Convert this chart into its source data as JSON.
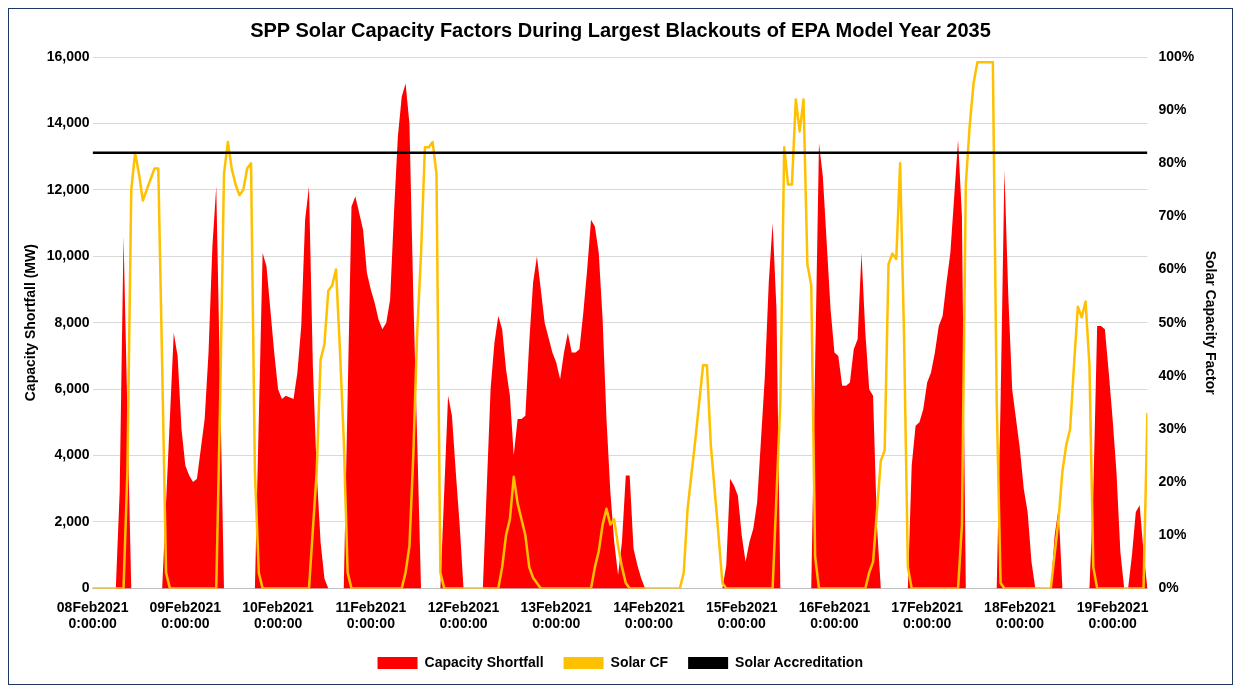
{
  "chart_data": {
    "type": "area",
    "title": "SPP Solar Capacity Factors During Largest Blackouts of EPA Model Year 2035",
    "ylabel": "Capacity Shortfall (MW)",
    "y2label": "Solar Capacity Factor",
    "xlim": [
      "2021-02-08T00:00",
      "2021-02-19T09:00"
    ],
    "xticks": [
      {
        "value": "2021-02-08",
        "label": "08Feb2021 0:00:00"
      },
      {
        "value": "2021-02-09",
        "label": "09Feb2021 0:00:00"
      },
      {
        "value": "2021-02-10",
        "label": "10Feb2021 0:00:00"
      },
      {
        "value": "2021-02-11",
        "label": "11Feb2021 0:00:00"
      },
      {
        "value": "2021-02-12",
        "label": "12Feb2021 0:00:00"
      },
      {
        "value": "2021-02-13",
        "label": "13Feb2021 0:00:00"
      },
      {
        "value": "2021-02-14",
        "label": "14Feb2021 0:00:00"
      },
      {
        "value": "2021-02-15",
        "label": "15Feb2021 0:00:00"
      },
      {
        "value": "2021-02-16",
        "label": "16Feb2021 0:00:00"
      },
      {
        "value": "2021-02-17",
        "label": "17Feb2021 0:00:00"
      },
      {
        "value": "2021-02-18",
        "label": "18Feb2021 0:00:00"
      },
      {
        "value": "2021-02-19",
        "label": "19Feb2021 0:00:00"
      }
    ],
    "ylim": [
      0,
      16000
    ],
    "yticks": [
      {
        "value": 0,
        "label": "0"
      },
      {
        "value": 2000,
        "label": "2,000"
      },
      {
        "value": 4000,
        "label": "4,000"
      },
      {
        "value": 6000,
        "label": "6,000"
      },
      {
        "value": 8000,
        "label": "8,000"
      },
      {
        "value": 10000,
        "label": "10,000"
      },
      {
        "value": 12000,
        "label": "12,000"
      },
      {
        "value": 14000,
        "label": "14,000"
      },
      {
        "value": 16000,
        "label": "16,000"
      }
    ],
    "y2lim": [
      0,
      100
    ],
    "y2ticks": [
      {
        "value": 0,
        "label": "0%"
      },
      {
        "value": 10,
        "label": "10%"
      },
      {
        "value": 20,
        "label": "20%"
      },
      {
        "value": 30,
        "label": "30%"
      },
      {
        "value": 40,
        "label": "40%"
      },
      {
        "value": 50,
        "label": "50%"
      },
      {
        "value": 60,
        "label": "60%"
      },
      {
        "value": 70,
        "label": "70%"
      },
      {
        "value": 80,
        "label": "80%"
      },
      {
        "value": 90,
        "label": "90%"
      },
      {
        "value": 100,
        "label": "100%"
      }
    ],
    "grid": "y",
    "legend": "bottom",
    "ref_lines": [
      {
        "axis": "y2",
        "value": 82,
        "label": "Solar Accreditation",
        "color": "#000000"
      }
    ],
    "series": [
      {
        "name": "Capacity Shortfall",
        "color": "#ff0000",
        "x": [
          "2021-02-08T00:00",
          "2021-02-08T06:00",
          "2021-02-08T07:00",
          "2021-02-08T08:00",
          "2021-02-08T10:00",
          "2021-02-08T18:00",
          "2021-02-08T21:00",
          "2021-02-08T22:00",
          "2021-02-08T23:00",
          "2021-02-09T00:00",
          "2021-02-09T01:00",
          "2021-02-09T02:00",
          "2021-02-09T03:00",
          "2021-02-09T05:00",
          "2021-02-09T06:00",
          "2021-02-09T07:00",
          "2021-02-09T08:00",
          "2021-02-09T09:00",
          "2021-02-09T10:00",
          "2021-02-09T18:00",
          "2021-02-09T20:00",
          "2021-02-09T21:00",
          "2021-02-09T22:00",
          "2021-02-09T23:00",
          "2021-02-10T00:00",
          "2021-02-10T01:00",
          "2021-02-10T02:00",
          "2021-02-10T04:00",
          "2021-02-10T05:00",
          "2021-02-10T06:00",
          "2021-02-10T07:00",
          "2021-02-10T08:00",
          "2021-02-10T09:00",
          "2021-02-10T10:00",
          "2021-02-10T11:00",
          "2021-02-10T12:00",
          "2021-02-10T13:00",
          "2021-02-10T17:00",
          "2021-02-10T19:00",
          "2021-02-10T20:00",
          "2021-02-10T21:00",
          "2021-02-10T22:00",
          "2021-02-10T23:00",
          "2021-02-11T00:00",
          "2021-02-11T01:00",
          "2021-02-11T02:00",
          "2021-02-11T03:00",
          "2021-02-11T04:00",
          "2021-02-11T05:00",
          "2021-02-11T06:00",
          "2021-02-11T07:00",
          "2021-02-11T08:00",
          "2021-02-11T09:00",
          "2021-02-11T10:00",
          "2021-02-11T11:00",
          "2021-02-11T12:00",
          "2021-02-11T13:00",
          "2021-02-11T18:00",
          "2021-02-11T20:00",
          "2021-02-11T21:00",
          "2021-02-11T22:00",
          "2021-02-11T23:00",
          "2021-02-12T00:00",
          "2021-02-12T05:00",
          "2021-02-12T07:00",
          "2021-02-12T08:00",
          "2021-02-12T09:00",
          "2021-02-12T10:00",
          "2021-02-12T11:00",
          "2021-02-12T12:00",
          "2021-02-12T13:00",
          "2021-02-12T14:00",
          "2021-02-12T15:00",
          "2021-02-12T16:00",
          "2021-02-12T17:00",
          "2021-02-12T18:00",
          "2021-02-12T19:00",
          "2021-02-12T20:00",
          "2021-02-12T21:00",
          "2021-02-12T23:00",
          "2021-02-13T00:00",
          "2021-02-13T01:00",
          "2021-02-13T02:00",
          "2021-02-13T03:00",
          "2021-02-13T04:00",
          "2021-02-13T05:00",
          "2021-02-13T06:00",
          "2021-02-13T07:00",
          "2021-02-13T08:00",
          "2021-02-13T09:00",
          "2021-02-13T10:00",
          "2021-02-13T11:00",
          "2021-02-13T12:00",
          "2021-02-13T13:00",
          "2021-02-13T14:00",
          "2021-02-13T15:00",
          "2021-02-13T16:00",
          "2021-02-13T17:00",
          "2021-02-13T18:00",
          "2021-02-13T19:00",
          "2021-02-13T20:00",
          "2021-02-13T21:00",
          "2021-02-13T22:00",
          "2021-02-13T23:00",
          "2021-02-14T19:00",
          "2021-02-14T20:00",
          "2021-02-14T21:00",
          "2021-02-14T22:00",
          "2021-02-14T23:00",
          "2021-02-15T00:00",
          "2021-02-15T01:00",
          "2021-02-15T02:00",
          "2021-02-15T03:00",
          "2021-02-15T04:00",
          "2021-02-15T05:00",
          "2021-02-15T06:00",
          "2021-02-15T07:00",
          "2021-02-15T08:00",
          "2021-02-15T09:00",
          "2021-02-15T10:00",
          "2021-02-15T18:00",
          "2021-02-15T19:00",
          "2021-02-15T20:00",
          "2021-02-15T21:00",
          "2021-02-15T22:00",
          "2021-02-15T23:00",
          "2021-02-16T00:00",
          "2021-02-16T01:00",
          "2021-02-16T02:00",
          "2021-02-16T03:00",
          "2021-02-16T04:00",
          "2021-02-16T05:00",
          "2021-02-16T06:00",
          "2021-02-16T07:00",
          "2021-02-16T08:00",
          "2021-02-16T09:00",
          "2021-02-16T10:00",
          "2021-02-16T11:00",
          "2021-02-16T12:00",
          "2021-02-16T19:00",
          "2021-02-16T20:00",
          "2021-02-16T21:00",
          "2021-02-16T22:00",
          "2021-02-16T23:00",
          "2021-02-17T00:00",
          "2021-02-17T01:00",
          "2021-02-17T02:00",
          "2021-02-17T03:00",
          "2021-02-17T04:00",
          "2021-02-17T05:00",
          "2021-02-17T06:00",
          "2021-02-17T07:00",
          "2021-02-17T08:00",
          "2021-02-17T09:00",
          "2021-02-17T10:00",
          "2021-02-17T18:00",
          "2021-02-17T19:00",
          "2021-02-17T20:00",
          "2021-02-17T21:00",
          "2021-02-17T22:00",
          "2021-02-18T00:00",
          "2021-02-18T01:00",
          "2021-02-18T02:00",
          "2021-02-18T03:00",
          "2021-02-18T04:00",
          "2021-02-18T08:00",
          "2021-02-18T09:00",
          "2021-02-18T10:00",
          "2021-02-18T11:00",
          "2021-02-18T18:00",
          "2021-02-18T19:00",
          "2021-02-18T20:00",
          "2021-02-18T21:00",
          "2021-02-18T22:00",
          "2021-02-18T23:00",
          "2021-02-19T00:00",
          "2021-02-19T01:00",
          "2021-02-19T02:00",
          "2021-02-19T03:00",
          "2021-02-19T04:00",
          "2021-02-19T05:00",
          "2021-02-19T06:00",
          "2021-02-19T07:00",
          "2021-02-19T08:00",
          "2021-02-19T09:00"
        ],
        "values": [
          0,
          0,
          2900,
          10600,
          0,
          0,
          7700,
          7000,
          4800,
          3700,
          3400,
          3200,
          3300,
          5100,
          7100,
          10300,
          12100,
          6100,
          0,
          0,
          10100,
          9700,
          8400,
          7100,
          6000,
          5700,
          5800,
          5700,
          6500,
          7900,
          11100,
          12100,
          6700,
          3500,
          1400,
          300,
          0,
          0,
          11500,
          11800,
          11300,
          10800,
          9500,
          9000,
          8600,
          8100,
          7800,
          8000,
          8700,
          11300,
          13600,
          14800,
          15200,
          14000,
          8800,
          4500,
          0,
          0,
          5800,
          5200,
          3500,
          1900,
          0,
          0,
          6000,
          7400,
          8200,
          7800,
          6600,
          5800,
          4000,
          5100,
          5100,
          5200,
          7400,
          9200,
          10000,
          9000,
          8000,
          7100,
          6800,
          6300,
          7100,
          7700,
          7100,
          7100,
          7200,
          8300,
          9600,
          11100,
          10900,
          10100,
          8100,
          5100,
          2900,
          1400,
          400,
          1400,
          3400,
          3400,
          1200,
          700,
          300,
          0,
          0,
          700,
          3300,
          3100,
          2800,
          1600,
          800,
          1400,
          1800,
          2600,
          4500,
          6400,
          9200,
          11000,
          8400,
          0,
          0,
          6700,
          13400,
          12400,
          10400,
          8400,
          7100,
          7000,
          6100,
          6100,
          6200,
          7200,
          7500,
          10100,
          7700,
          6000,
          5800,
          1900,
          0,
          0,
          3700,
          4900,
          5000,
          5400,
          6200,
          6500,
          7100,
          7900,
          8200,
          9200,
          10100,
          11800,
          13500,
          11200,
          0,
          0,
          5600,
          12600,
          8800,
          6000,
          4200,
          3000,
          2300,
          800,
          0,
          0,
          1600,
          2400,
          0,
          0,
          2900,
          7900,
          7900,
          7800,
          6500,
          5100,
          3500,
          1100,
          0,
          0,
          1000,
          2300,
          2500,
          1100,
          0
        ]
      },
      {
        "name": "Solar CF",
        "type": "line",
        "axis": "y2",
        "color": "#ffc000",
        "x": [
          "2021-02-08T00:00",
          "2021-02-08T08:00",
          "2021-02-08T09:00",
          "2021-02-08T10:00",
          "2021-02-08T11:00",
          "2021-02-08T12:00",
          "2021-02-08T13:00",
          "2021-02-08T14:00",
          "2021-02-08T15:00",
          "2021-02-08T16:00",
          "2021-02-08T17:00",
          "2021-02-08T18:00",
          "2021-02-08T19:00",
          "2021-02-08T20:00",
          "2021-02-09T08:00",
          "2021-02-09T09:00",
          "2021-02-09T10:00",
          "2021-02-09T11:00",
          "2021-02-09T12:00",
          "2021-02-09T13:00",
          "2021-02-09T14:00",
          "2021-02-09T15:00",
          "2021-02-09T16:00",
          "2021-02-09T17:00",
          "2021-02-09T18:00",
          "2021-02-09T19:00",
          "2021-02-09T20:00",
          "2021-02-10T08:00",
          "2021-02-10T10:00",
          "2021-02-10T11:00",
          "2021-02-10T12:00",
          "2021-02-10T13:00",
          "2021-02-10T14:00",
          "2021-02-10T15:00",
          "2021-02-10T16:00",
          "2021-02-10T17:00",
          "2021-02-10T18:00",
          "2021-02-10T19:00",
          "2021-02-11T08:00",
          "2021-02-11T09:00",
          "2021-02-11T10:00",
          "2021-02-11T11:00",
          "2021-02-11T12:00",
          "2021-02-11T13:00",
          "2021-02-11T14:00",
          "2021-02-11T15:00",
          "2021-02-11T16:00",
          "2021-02-11T17:00",
          "2021-02-11T18:00",
          "2021-02-11T19:00",
          "2021-02-12T09:00",
          "2021-02-12T10:00",
          "2021-02-12T11:00",
          "2021-02-12T12:00",
          "2021-02-12T13:00",
          "2021-02-12T14:00",
          "2021-02-12T15:00",
          "2021-02-12T16:00",
          "2021-02-12T17:00",
          "2021-02-12T18:00",
          "2021-02-12T20:00",
          "2021-02-13T09:00",
          "2021-02-13T10:00",
          "2021-02-13T11:00",
          "2021-02-13T12:00",
          "2021-02-13T13:00",
          "2021-02-13T14:00",
          "2021-02-13T15:00",
          "2021-02-13T16:00",
          "2021-02-13T17:00",
          "2021-02-13T18:00",
          "2021-02-13T19:00",
          "2021-02-14T08:00",
          "2021-02-14T09:00",
          "2021-02-14T10:00",
          "2021-02-14T12:00",
          "2021-02-14T14:00",
          "2021-02-14T15:00",
          "2021-02-14T16:00",
          "2021-02-14T18:00",
          "2021-02-14T19:00",
          "2021-02-14T20:00",
          "2021-02-15T08:00",
          "2021-02-15T10:00",
          "2021-02-15T11:00",
          "2021-02-15T12:00",
          "2021-02-15T13:00",
          "2021-02-15T14:00",
          "2021-02-15T15:00",
          "2021-02-15T16:00",
          "2021-02-15T17:00",
          "2021-02-15T18:00",
          "2021-02-15T19:00",
          "2021-02-15T20:00",
          "2021-02-16T08:00",
          "2021-02-16T09:00",
          "2021-02-16T10:00",
          "2021-02-16T12:00",
          "2021-02-16T13:00",
          "2021-02-16T14:00",
          "2021-02-16T15:00",
          "2021-02-16T16:00",
          "2021-02-16T17:00",
          "2021-02-16T18:00",
          "2021-02-16T19:00",
          "2021-02-16T20:00",
          "2021-02-17T08:00",
          "2021-02-17T09:00",
          "2021-02-17T10:00",
          "2021-02-17T11:00",
          "2021-02-17T12:00",
          "2021-02-17T13:00",
          "2021-02-17T17:00",
          "2021-02-17T18:00",
          "2021-02-17T19:00",
          "2021-02-17T20:00",
          "2021-02-18T08:00",
          "2021-02-18T10:00",
          "2021-02-18T11:00",
          "2021-02-18T12:00",
          "2021-02-18T13:00",
          "2021-02-18T14:00",
          "2021-02-18T15:00",
          "2021-02-18T16:00",
          "2021-02-18T17:00",
          "2021-02-18T18:00",
          "2021-02-18T19:00",
          "2021-02-18T20:00",
          "2021-02-19T08:00",
          "2021-02-19T09:00"
        ],
        "values": [
          0,
          0,
          22,
          75,
          82,
          78,
          73,
          75,
          77,
          79,
          79,
          42,
          3,
          0,
          0,
          35,
          78,
          84,
          79,
          76,
          74,
          75,
          79,
          80,
          22,
          3,
          0,
          0,
          22,
          43,
          46,
          56,
          57,
          60,
          45,
          28,
          3,
          0,
          0,
          3,
          8,
          25,
          48,
          63,
          83,
          83,
          84,
          78,
          3,
          0,
          0,
          4,
          10,
          13,
          21,
          16,
          13,
          10,
          4,
          2,
          0,
          0,
          4,
          7,
          12,
          15,
          12,
          13,
          8,
          4,
          1,
          0,
          0,
          3,
          15,
          28,
          42,
          42,
          27,
          10,
          1,
          0,
          0,
          35,
          83,
          76,
          76,
          92,
          86,
          92,
          61,
          57,
          6,
          0,
          0,
          3,
          5,
          24,
          26,
          61,
          63,
          62,
          80,
          48,
          4,
          0,
          0,
          12,
          76,
          87,
          95,
          99,
          99,
          35,
          1,
          0,
          0,
          13,
          22,
          27,
          30,
          42,
          53,
          51,
          54,
          42,
          4,
          0,
          0,
          33
        ]
      }
    ]
  }
}
